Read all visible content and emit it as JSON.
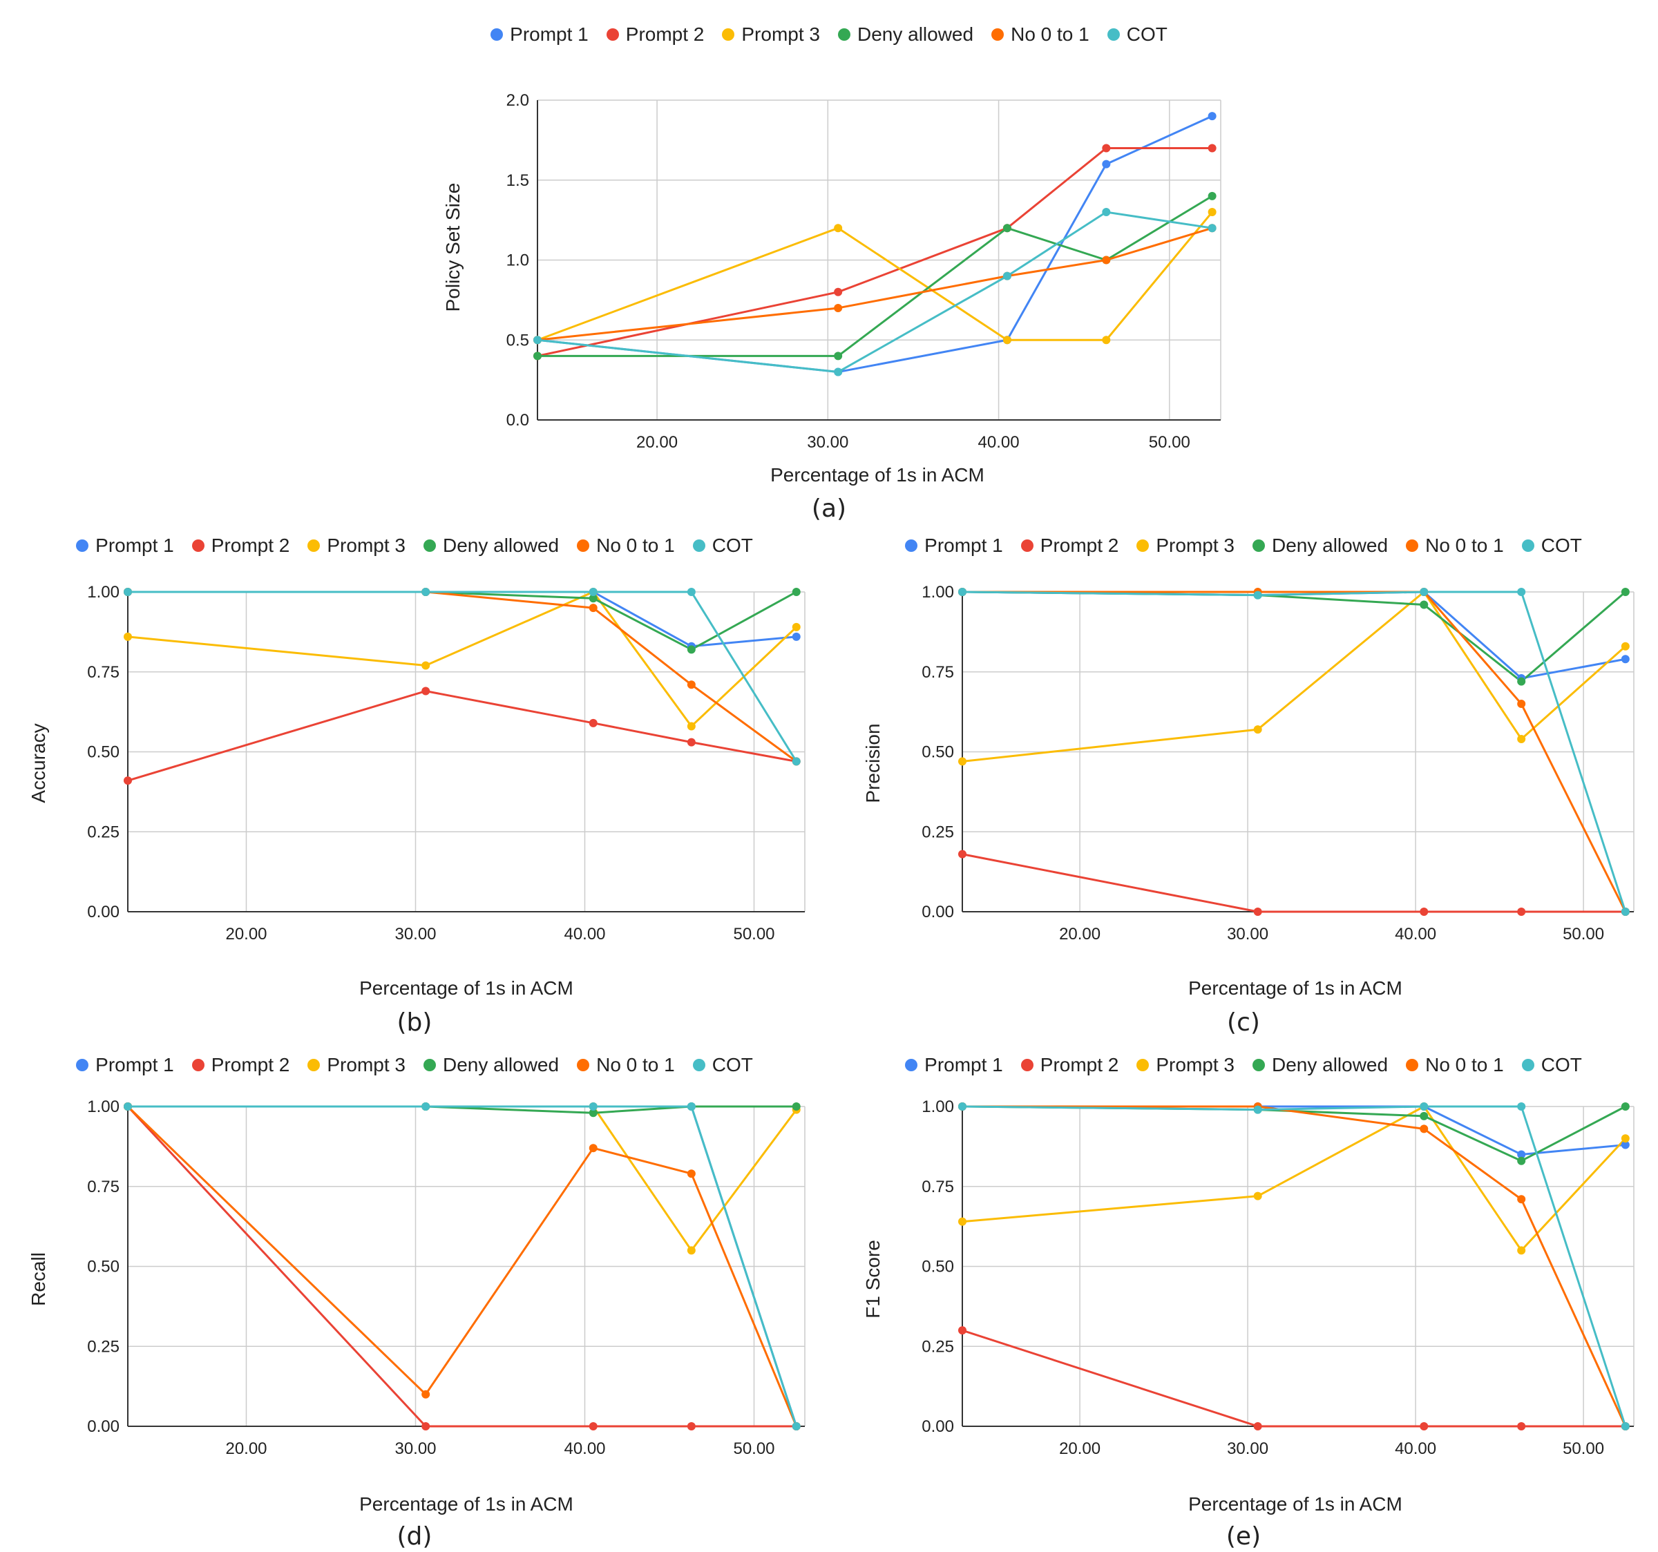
{
  "colors": {
    "Prompt 1": "#4285F4",
    "Prompt 2": "#EA4335",
    "Prompt 3": "#FBBC04",
    "Deny allowed": "#34A853",
    "No 0 to 1": "#FF6D01",
    "COT": "#46BDC6"
  },
  "chart_data": [
    {
      "type": "line",
      "panel": "(a)",
      "title": "",
      "xlabel": "Percentage of 1s in ACM",
      "ylabel": "Policy Set Size",
      "xlim": [
        13,
        53
      ],
      "ylim": [
        0,
        2
      ],
      "x": [
        13.0,
        30.6,
        40.5,
        46.3,
        52.5
      ],
      "xticks": [
        "20.00",
        "30.00",
        "40.00",
        "50.00"
      ],
      "xtick_values": [
        20,
        30,
        40,
        50
      ],
      "yticks": [
        "0.0",
        "0.5",
        "1.0",
        "1.5",
        "2.0"
      ],
      "ytick_values": [
        0,
        0.5,
        1.0,
        1.5,
        2.0
      ],
      "legend": [
        "Prompt 1",
        "Prompt 2",
        "Prompt 3",
        "Deny allowed",
        "No 0 to 1",
        "COT"
      ],
      "series": [
        {
          "name": "Prompt 1",
          "values": [
            0.5,
            0.3,
            0.5,
            1.6,
            1.9
          ]
        },
        {
          "name": "Prompt 2",
          "values": [
            0.4,
            0.8,
            1.2,
            1.7,
            1.7
          ]
        },
        {
          "name": "Prompt 3",
          "values": [
            0.5,
            1.2,
            0.5,
            0.5,
            1.3
          ]
        },
        {
          "name": "Deny allowed",
          "values": [
            0.4,
            0.4,
            1.2,
            1.0,
            1.4
          ]
        },
        {
          "name": "No 0 to 1",
          "values": [
            0.5,
            0.7,
            0.9,
            1.0,
            1.2
          ]
        },
        {
          "name": "COT",
          "values": [
            0.5,
            0.3,
            0.9,
            1.3,
            1.2
          ]
        }
      ]
    },
    {
      "type": "line",
      "panel": "(b)",
      "title": "",
      "xlabel": "Percentage of 1s in ACM",
      "ylabel": "Accuracy",
      "xlim": [
        13,
        53
      ],
      "ylim": [
        0,
        1
      ],
      "x": [
        13.0,
        30.6,
        40.5,
        46.3,
        52.5
      ],
      "xticks": [
        "20.00",
        "30.00",
        "40.00",
        "50.00"
      ],
      "xtick_values": [
        20,
        30,
        40,
        50
      ],
      "yticks": [
        "0.00",
        "0.25",
        "0.50",
        "0.75",
        "1.00"
      ],
      "ytick_values": [
        0,
        0.25,
        0.5,
        0.75,
        1.0
      ],
      "legend": [
        "Prompt 1",
        "Prompt 2",
        "Prompt 3",
        "Deny allowed",
        "No 0 to 1",
        "COT"
      ],
      "series": [
        {
          "name": "Prompt 1",
          "values": [
            1.0,
            1.0,
            1.0,
            0.83,
            0.86
          ]
        },
        {
          "name": "Prompt 2",
          "values": [
            0.41,
            0.69,
            0.59,
            0.53,
            0.47
          ]
        },
        {
          "name": "Prompt 3",
          "values": [
            0.86,
            0.77,
            1.0,
            0.58,
            0.89
          ]
        },
        {
          "name": "Deny allowed",
          "values": [
            1.0,
            1.0,
            0.98,
            0.82,
            1.0
          ]
        },
        {
          "name": "No 0 to 1",
          "values": [
            1.0,
            1.0,
            0.95,
            0.71,
            0.47
          ]
        },
        {
          "name": "COT",
          "values": [
            1.0,
            1.0,
            1.0,
            1.0,
            0.47
          ]
        }
      ]
    },
    {
      "type": "line",
      "panel": "(c)",
      "title": "",
      "xlabel": "Percentage of 1s in ACM",
      "ylabel": "Precision",
      "xlim": [
        13,
        53
      ],
      "ylim": [
        0,
        1
      ],
      "x": [
        13.0,
        30.6,
        40.5,
        46.3,
        52.5
      ],
      "xticks": [
        "20.00",
        "30.00",
        "40.00",
        "50.00"
      ],
      "xtick_values": [
        20,
        30,
        40,
        50
      ],
      "yticks": [
        "0.00",
        "0.25",
        "0.50",
        "0.75",
        "1.00"
      ],
      "ytick_values": [
        0,
        0.25,
        0.5,
        0.75,
        1.0
      ],
      "legend": [
        "Prompt 1",
        "Prompt 2",
        "Prompt 3",
        "Deny allowed",
        "No 0 to 1",
        "COT"
      ],
      "series": [
        {
          "name": "Prompt 1",
          "values": [
            1.0,
            0.99,
            1.0,
            0.73,
            0.79
          ]
        },
        {
          "name": "Prompt 2",
          "values": [
            0.18,
            0.0,
            0.0,
            0.0,
            0.0
          ]
        },
        {
          "name": "Prompt 3",
          "values": [
            0.47,
            0.57,
            1.0,
            0.54,
            0.83
          ]
        },
        {
          "name": "Deny allowed",
          "values": [
            1.0,
            0.99,
            0.96,
            0.72,
            1.0
          ]
        },
        {
          "name": "No 0 to 1",
          "values": [
            1.0,
            1.0,
            1.0,
            0.65,
            0.0
          ]
        },
        {
          "name": "COT",
          "values": [
            1.0,
            0.99,
            1.0,
            1.0,
            0.0
          ]
        }
      ]
    },
    {
      "type": "line",
      "panel": "(d)",
      "title": "",
      "xlabel": "Percentage of 1s in ACM",
      "ylabel": "Recall",
      "xlim": [
        13,
        53
      ],
      "ylim": [
        0,
        1
      ],
      "x": [
        13.0,
        30.6,
        40.5,
        46.3,
        52.5
      ],
      "xticks": [
        "20.00",
        "30.00",
        "40.00",
        "50.00"
      ],
      "xtick_values": [
        20,
        30,
        40,
        50
      ],
      "yticks": [
        "0.00",
        "0.25",
        "0.50",
        "0.75",
        "1.00"
      ],
      "ytick_values": [
        0,
        0.25,
        0.5,
        0.75,
        1.0
      ],
      "legend": [
        "Prompt 1",
        "Prompt 2",
        "Prompt 3",
        "Deny allowed",
        "No 0 to 1",
        "COT"
      ],
      "series": [
        {
          "name": "Prompt 1",
          "values": [
            1.0,
            1.0,
            1.0,
            1.0,
            0.0
          ]
        },
        {
          "name": "Prompt 2",
          "values": [
            1.0,
            0.0,
            0.0,
            0.0,
            0.0
          ]
        },
        {
          "name": "Prompt 3",
          "values": [
            1.0,
            1.0,
            1.0,
            0.55,
            0.99
          ]
        },
        {
          "name": "Deny allowed",
          "values": [
            1.0,
            1.0,
            0.98,
            1.0,
            1.0
          ]
        },
        {
          "name": "No 0 to 1",
          "values": [
            1.0,
            0.1,
            0.87,
            0.79,
            0.0
          ]
        },
        {
          "name": "COT",
          "values": [
            1.0,
            1.0,
            1.0,
            1.0,
            0.0
          ]
        }
      ]
    },
    {
      "type": "line",
      "panel": "(e)",
      "title": "",
      "xlabel": "Percentage of 1s in ACM",
      "ylabel": "F1 Score",
      "xlim": [
        13,
        53
      ],
      "ylim": [
        0,
        1
      ],
      "x": [
        13.0,
        30.6,
        40.5,
        46.3,
        52.5
      ],
      "xticks": [
        "20.00",
        "30.00",
        "40.00",
        "50.00"
      ],
      "xtick_values": [
        20,
        30,
        40,
        50
      ],
      "yticks": [
        "0.00",
        "0.25",
        "0.50",
        "0.75",
        "1.00"
      ],
      "ytick_values": [
        0,
        0.25,
        0.5,
        0.75,
        1.0
      ],
      "legend": [
        "Prompt 1",
        "Prompt 2",
        "Prompt 3",
        "Deny allowed",
        "No 0 to 1",
        "COT"
      ],
      "series": [
        {
          "name": "Prompt 1",
          "values": [
            1.0,
            1.0,
            1.0,
            0.85,
            0.88
          ]
        },
        {
          "name": "Prompt 2",
          "values": [
            0.3,
            0.0,
            0.0,
            0.0,
            0.0
          ]
        },
        {
          "name": "Prompt 3",
          "values": [
            0.64,
            0.72,
            1.0,
            0.55,
            0.9
          ]
        },
        {
          "name": "Deny allowed",
          "values": [
            1.0,
            0.99,
            0.97,
            0.83,
            1.0
          ]
        },
        {
          "name": "No 0 to 1",
          "values": [
            1.0,
            1.0,
            0.93,
            0.71,
            0.0
          ]
        },
        {
          "name": "COT",
          "values": [
            1.0,
            0.99,
            1.0,
            1.0,
            0.0
          ]
        }
      ]
    }
  ]
}
